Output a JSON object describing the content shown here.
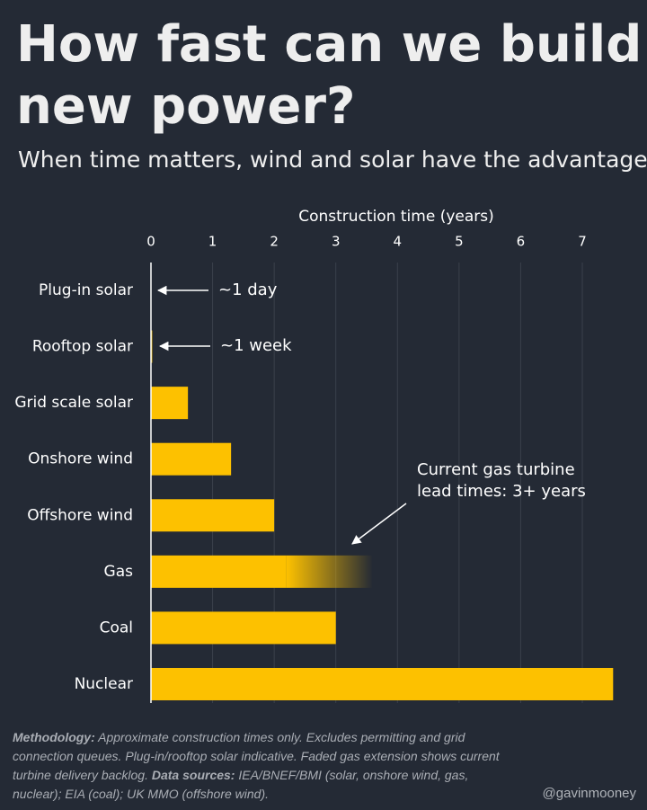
{
  "chart_data": {
    "type": "bar",
    "orientation": "horizontal",
    "title_lines": [
      "How fast can we build",
      "new power?"
    ],
    "subtitle": "When time matters, wind and solar have the advantage",
    "x_label": "Construction time (years)",
    "categories": [
      "Plug-in solar",
      "Rooftop solar",
      "Grid scale solar",
      "Onshore wind",
      "Offshore wind",
      "Gas",
      "Coal",
      "Nuclear"
    ],
    "values": [
      0.003,
      0.02,
      0.6,
      1.3,
      2.0,
      2.2,
      3.0,
      7.5
    ],
    "extension_values": [
      null,
      null,
      null,
      null,
      null,
      1.4,
      null,
      null
    ],
    "color": "#fdc100",
    "xlim": [
      0,
      7.5
    ],
    "xticks": [
      0,
      1,
      2,
      3,
      4,
      5,
      6,
      7
    ],
    "grid": true,
    "annotations": [
      {
        "text": "~1 day"
      },
      {
        "text": "~1 week"
      },
      {
        "lines": [
          "Current gas turbine",
          "lead times: 3+ years"
        ]
      }
    ],
    "footnote": {
      "methodology_label": "Methodology:",
      "methodology_text": "Approximate construction times only. Excludes permitting and grid connection queues. Plug-in/rooftop solar indicative. Faded gas extension shows current turbine delivery backlog.",
      "sources_label": "Data sources:",
      "sources_text": "IEA/BNEF/BMI (solar, onshore wind, gas, nuclear); EIA (coal); UK MMO (offshore wind)."
    },
    "credit": "@gavinmooney"
  }
}
